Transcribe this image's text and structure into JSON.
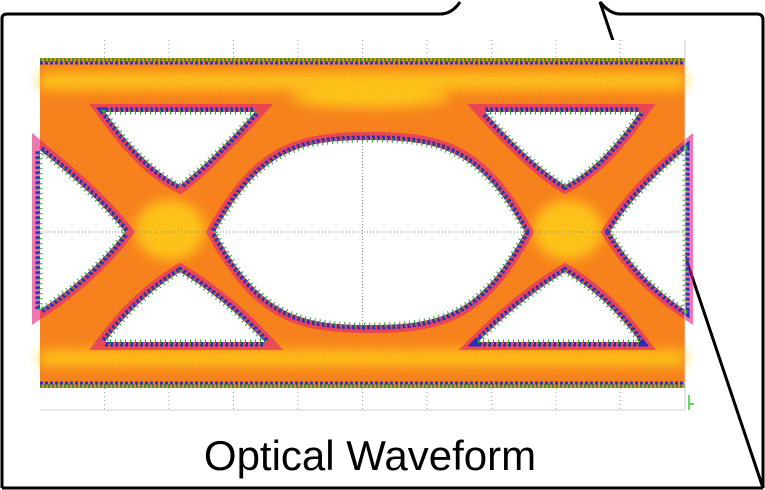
{
  "caption": "Optical Waveform"
}
